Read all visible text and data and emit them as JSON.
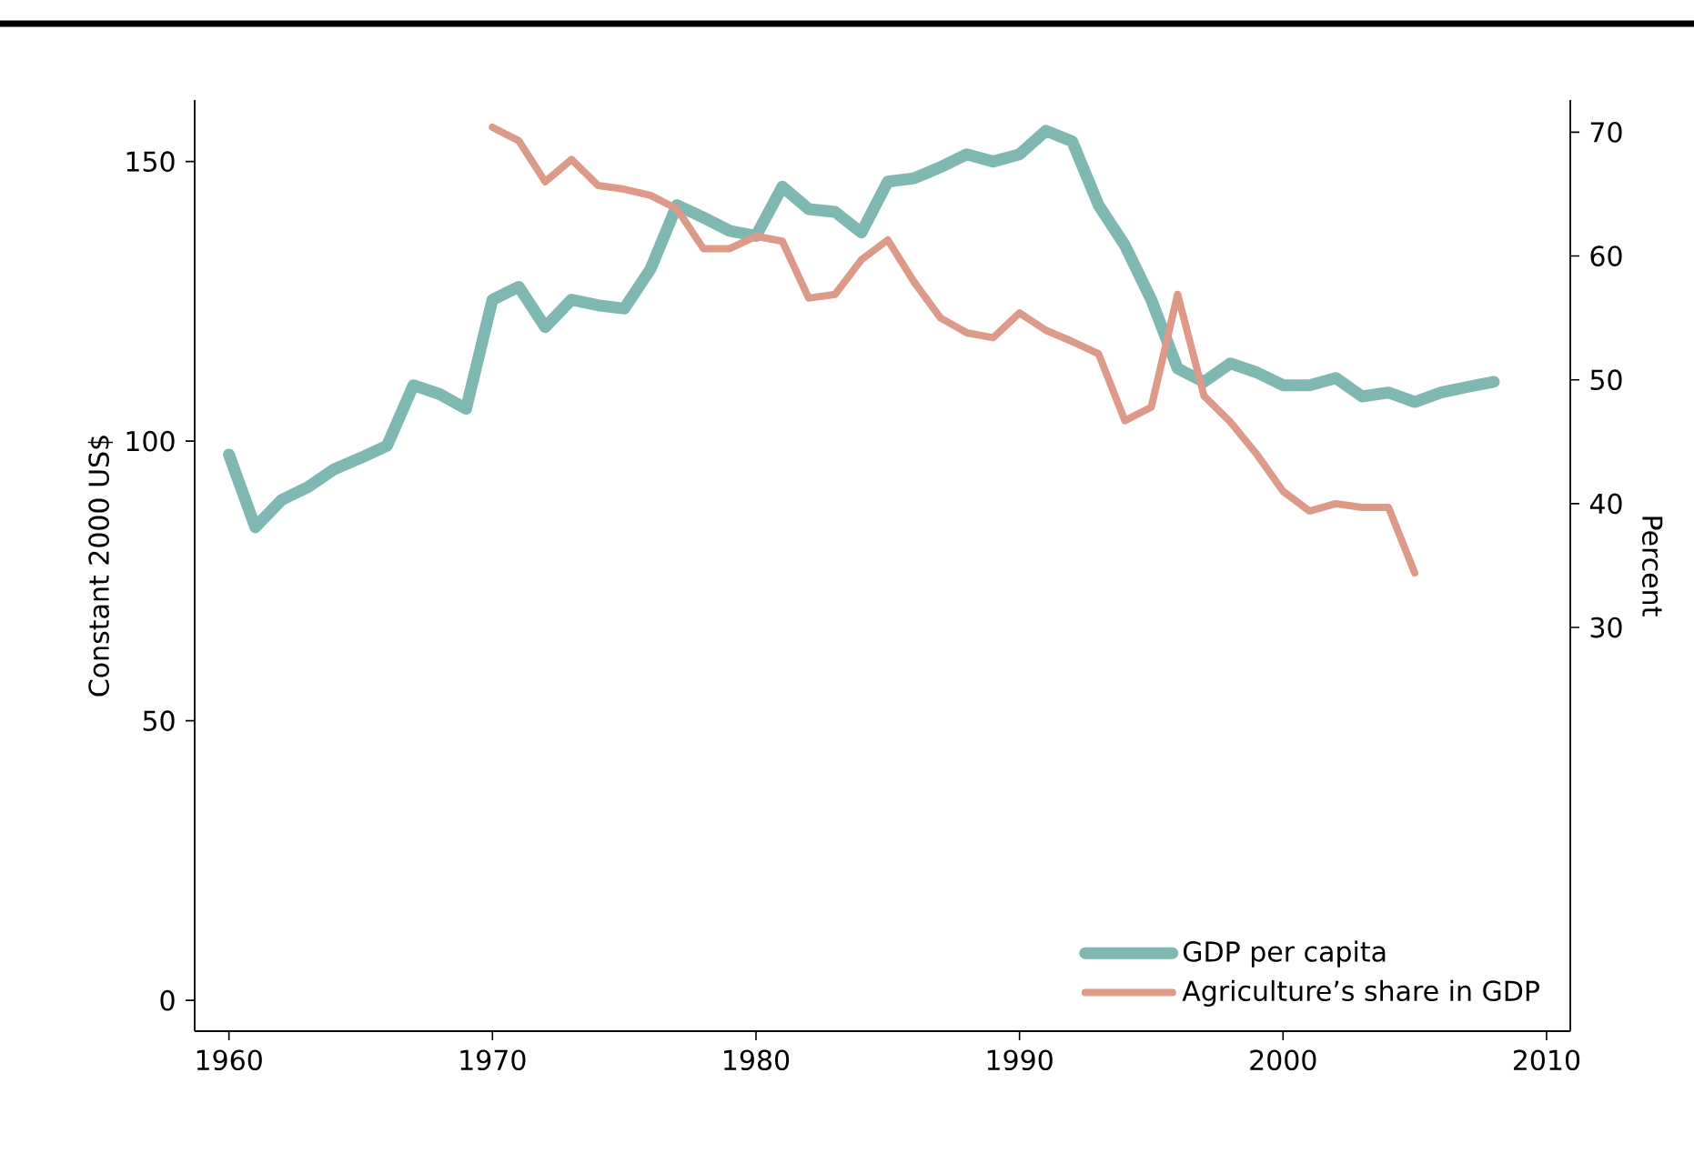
{
  "chart_data": {
    "type": "line",
    "ylabel": "Constant 2000 US$",
    "y2label": "Percent",
    "x": [
      1960,
      1961,
      1962,
      1963,
      1964,
      1965,
      1966,
      1967,
      1968,
      1969,
      1970,
      1971,
      1972,
      1973,
      1974,
      1975,
      1976,
      1977,
      1978,
      1979,
      1980,
      1981,
      1982,
      1983,
      1984,
      1985,
      1986,
      1987,
      1988,
      1989,
      1990,
      1991,
      1992,
      1993,
      1994,
      1995,
      1996,
      1997,
      1998,
      1999,
      2000,
      2001,
      2002,
      2003,
      2004,
      2005,
      2006,
      2007,
      2008
    ],
    "series": [
      {
        "name": "GDP per capita",
        "color": "#7fb7b2",
        "values": [
          97.6,
          84.6,
          89.5,
          91.8,
          95,
          97,
          99.2,
          110,
          108.4,
          105.8,
          125.3,
          127.6,
          120.4,
          125.3,
          124.3,
          123.7,
          130.8,
          142.2,
          140,
          137.6,
          136.7,
          145.5,
          141.5,
          141,
          137.3,
          146.4,
          147,
          149,
          151.3,
          150,
          151.3,
          155.5,
          153.6,
          142.2,
          135,
          125.3,
          113,
          110.6,
          113.9,
          112.3,
          110,
          110,
          111.3,
          108,
          108.7,
          107,
          108.7,
          109.7,
          110.6
        ]
      },
      {
        "name": "Agriculture’s share in GDP",
        "color": "#dd9a88",
        "axis": "y2",
        "x": [
          1970,
          1971,
          1972,
          1973,
          1974,
          1975,
          1976,
          1977,
          1978,
          1979,
          1980,
          1981,
          1982,
          1983,
          1984,
          1985,
          1986,
          1987,
          1988,
          1989,
          1990,
          1991,
          1992,
          1993,
          1994,
          1995,
          1996,
          1997,
          1998,
          1999,
          2000,
          2001,
          2002,
          2003,
          2004,
          2005
        ],
        "values": [
          70.4,
          69.3,
          66,
          67.8,
          65.7,
          65.4,
          64.9,
          63.8,
          60.6,
          60.6,
          61.6,
          61.2,
          56.6,
          56.9,
          59.7,
          61.3,
          57.9,
          55,
          53.8,
          53.4,
          55.4,
          54,
          53.1,
          52.1,
          46.7,
          47.8,
          56.9,
          48.7,
          46.6,
          44,
          41,
          39.4,
          40,
          39.7,
          39.7,
          34.4
        ]
      }
    ],
    "xlim": [
      1958.7,
      2010.9
    ],
    "xticks": [
      1960,
      1970,
      1980,
      1990,
      2000,
      2010
    ],
    "ylim": [
      -5.5,
      161
    ],
    "yticks": [
      0,
      50,
      100,
      150
    ],
    "y2lim": [
      -2.6,
      72.6
    ],
    "y2ticks": [
      30,
      40,
      50,
      60,
      70
    ],
    "grid": false,
    "legend": "bottom right",
    "line_style": "solid"
  }
}
